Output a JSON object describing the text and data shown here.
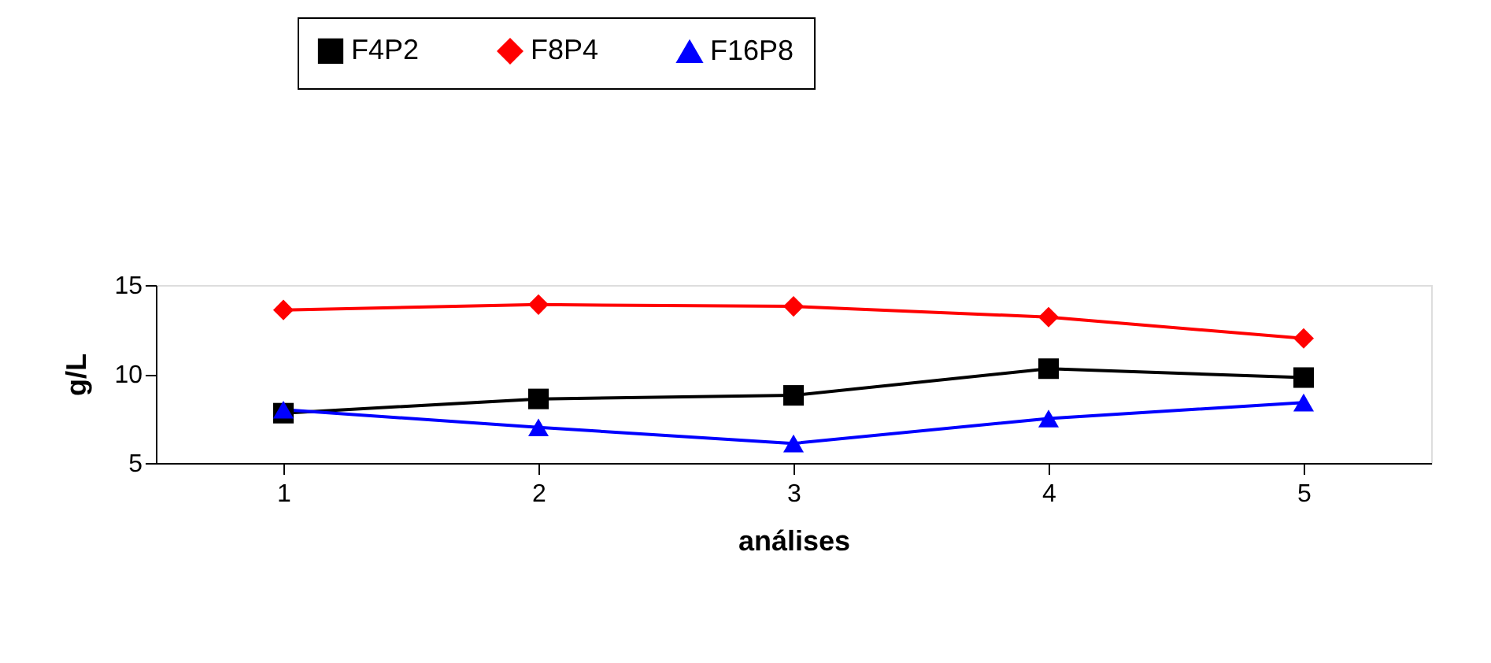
{
  "chart_data": {
    "type": "line",
    "xlabel": "análises",
    "ylabel": "g/L",
    "categories": [
      "1",
      "2",
      "3",
      "4",
      "5"
    ],
    "series": [
      {
        "name": "F4P2",
        "color": "#000000",
        "marker": "square",
        "values": [
          7.8,
          8.6,
          8.8,
          10.3,
          9.8
        ]
      },
      {
        "name": "F8P4",
        "color": "#ff0000",
        "marker": "diamond",
        "values": [
          13.6,
          13.9,
          13.8,
          13.2,
          12.0
        ]
      },
      {
        "name": "F16P8",
        "color": "#0000ff",
        "marker": "triangle",
        "values": [
          8.0,
          7.0,
          6.1,
          7.5,
          8.4
        ]
      }
    ],
    "ylim": [
      5,
      15
    ],
    "yticks": [
      5,
      10,
      15
    ],
    "grid": false,
    "legend": "top",
    "line_style": "solid"
  }
}
